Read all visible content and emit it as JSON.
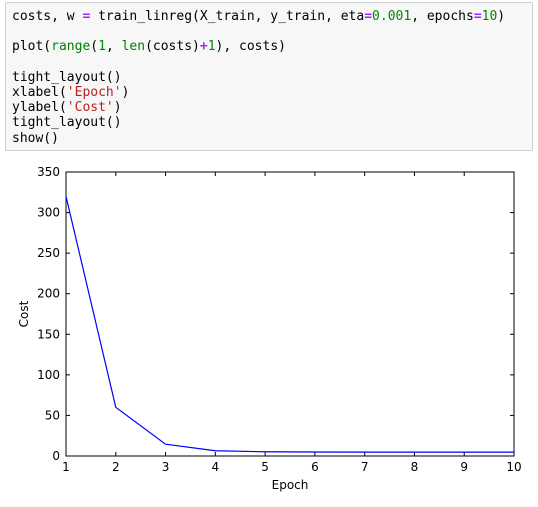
{
  "code_cell": {
    "lines": [
      [
        {
          "t": "costs, w ",
          "k": "plain"
        },
        {
          "t": "=",
          "k": "op"
        },
        {
          "t": " train_linreg(X_train, y_train, eta",
          "k": "plain"
        },
        {
          "t": "=",
          "k": "op"
        },
        {
          "t": "0.001",
          "k": "num"
        },
        {
          "t": ", epochs",
          "k": "plain"
        },
        {
          "t": "=",
          "k": "op"
        },
        {
          "t": "10",
          "k": "num"
        },
        {
          "t": ")",
          "k": "plain"
        }
      ],
      [],
      [
        {
          "t": "plot(",
          "k": "plain"
        },
        {
          "t": "range",
          "k": "builtin"
        },
        {
          "t": "(",
          "k": "plain"
        },
        {
          "t": "1",
          "k": "num"
        },
        {
          "t": ", ",
          "k": "plain"
        },
        {
          "t": "len",
          "k": "builtin"
        },
        {
          "t": "(costs)",
          "k": "plain"
        },
        {
          "t": "+",
          "k": "op"
        },
        {
          "t": "1",
          "k": "num"
        },
        {
          "t": "), costs)",
          "k": "plain"
        }
      ],
      [],
      [
        {
          "t": "tight_layout()",
          "k": "plain"
        }
      ],
      [
        {
          "t": "xlabel(",
          "k": "plain"
        },
        {
          "t": "'Epoch'",
          "k": "str"
        },
        {
          "t": ")",
          "k": "plain"
        }
      ],
      [
        {
          "t": "ylabel(",
          "k": "plain"
        },
        {
          "t": "'Cost'",
          "k": "str"
        },
        {
          "t": ")",
          "k": "plain"
        }
      ],
      [
        {
          "t": "tight_layout()",
          "k": "plain"
        }
      ],
      [
        {
          "t": "show()",
          "k": "plain"
        }
      ]
    ]
  },
  "colors": {
    "line": "#0000ff",
    "axes": "#000000",
    "number": "#008800",
    "operator": "#aa22ff",
    "builtin": "#008000",
    "string": "#ba2121"
  },
  "chart_data": {
    "type": "line",
    "title": "",
    "xlabel": "Epoch",
    "ylabel": "Cost",
    "xlim": [
      1,
      10
    ],
    "ylim": [
      0,
      350
    ],
    "xticks": [
      "1",
      "2",
      "3",
      "4",
      "5",
      "6",
      "7",
      "8",
      "9",
      "10"
    ],
    "yticks": [
      "0",
      "50",
      "100",
      "150",
      "200",
      "250",
      "300",
      "350"
    ],
    "grid": false,
    "legend": "none",
    "series": [
      {
        "x": [
          1,
          2,
          3,
          4,
          5,
          6,
          7,
          8,
          9,
          10
        ],
        "values": [
          320,
          60,
          14.5,
          6.5,
          5.2,
          4.9,
          4.8,
          4.8,
          4.8,
          4.8
        ]
      }
    ]
  }
}
